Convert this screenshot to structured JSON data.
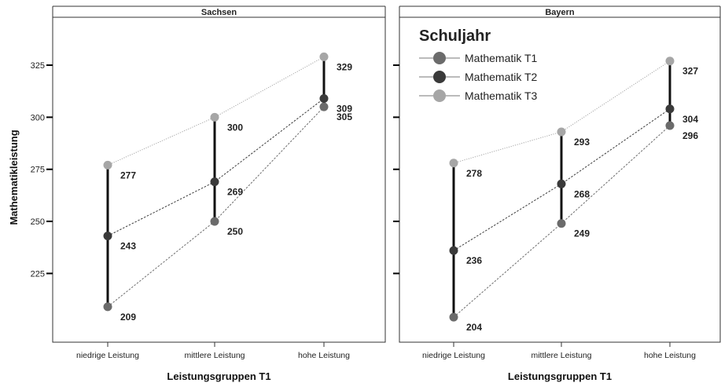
{
  "chart_data": {
    "type": "line",
    "ylabel": "Mathematikleistung",
    "yticks": [
      225,
      250,
      275,
      300,
      325
    ],
    "ylim": [
      192,
      348
    ],
    "legend": {
      "title": "Schuljahr",
      "placement": "top-left of right panel",
      "entries": [
        "Mathematik T1",
        "Mathematik T2",
        "Mathematik T3"
      ]
    },
    "series_colors": {
      "T1": "#6b6b6b",
      "T2": "#3a3a3a",
      "T3": "#a6a6a6"
    },
    "panels": [
      {
        "title": "Sachsen",
        "xlabel": "Leistungsgruppen T1",
        "categories": [
          "niedrige Leistung",
          "mittlere Leistung",
          "hohe Leistung"
        ],
        "series": [
          {
            "name": "Mathematik T1",
            "values": [
              209,
              250,
              305
            ]
          },
          {
            "name": "Mathematik T2",
            "values": [
              243,
              269,
              309
            ]
          },
          {
            "name": "Mathematik T3",
            "values": [
              277,
              300,
              329
            ]
          }
        ]
      },
      {
        "title": "Bayern",
        "xlabel": "Leistungsgruppen T1",
        "categories": [
          "niedrige Leistung",
          "mittlere Leistung",
          "hohe Leistung"
        ],
        "series": [
          {
            "name": "Mathematik T1",
            "values": [
              204,
              249,
              296
            ]
          },
          {
            "name": "Mathematik T2",
            "values": [
              236,
              268,
              304
            ]
          },
          {
            "name": "Mathematik T3",
            "values": [
              278,
              293,
              327
            ]
          }
        ]
      }
    ]
  }
}
